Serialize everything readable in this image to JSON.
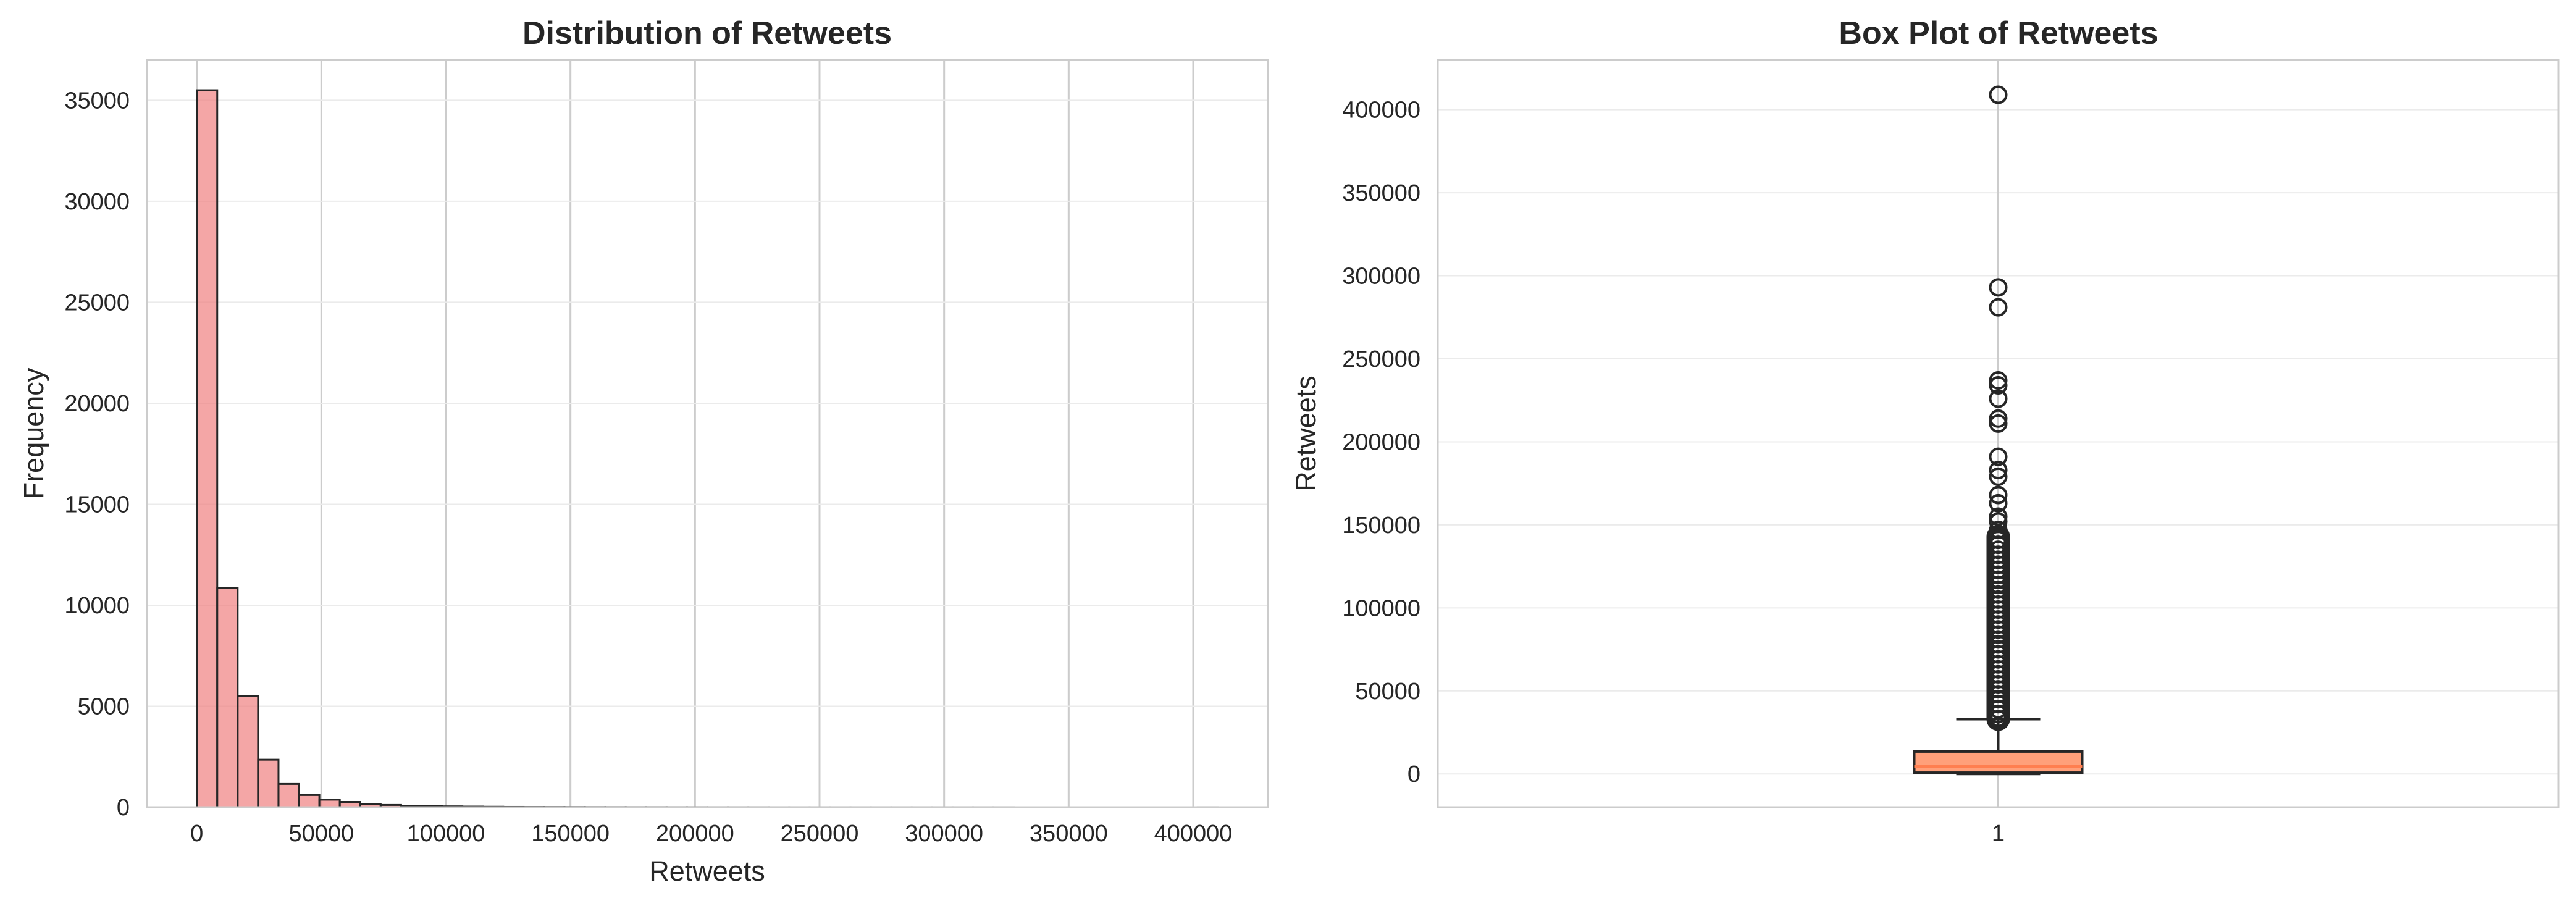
{
  "chart_data": [
    {
      "type": "bar",
      "title": "Distribution of Retweets",
      "xlabel": "Retweets",
      "ylabel": "Frequency",
      "xlim": [
        -20000,
        430000
      ],
      "ylim": [
        0,
        37000
      ],
      "x_ticks": [
        0,
        50000,
        100000,
        150000,
        200000,
        250000,
        300000,
        350000,
        400000
      ],
      "x_tick_labels": [
        "0",
        "50000",
        "100000",
        "150000",
        "200000",
        "250000",
        "300000",
        "350000",
        "400000"
      ],
      "y_ticks": [
        0,
        5000,
        10000,
        15000,
        20000,
        25000,
        30000,
        35000
      ],
      "y_tick_labels": [
        "0",
        "5000",
        "10000",
        "15000",
        "20000",
        "25000",
        "30000",
        "35000"
      ],
      "bin_start": 0,
      "bin_width": 8200,
      "values": [
        35500,
        10850,
        5500,
        2350,
        1150,
        600,
        370,
        260,
        160,
        110,
        75,
        55,
        40,
        30,
        22,
        16,
        12,
        10,
        8,
        6,
        5,
        4,
        4,
        3,
        3,
        2,
        2,
        2,
        1,
        1,
        1,
        1,
        1,
        1,
        1,
        1,
        1,
        1,
        1,
        1,
        0,
        0,
        0,
        0,
        0,
        0,
        0,
        0,
        0,
        1
      ],
      "bar_color": "#f08080",
      "grid": "vertical lines only"
    },
    {
      "type": "box",
      "title": "Box Plot of Retweets",
      "ylabel": "Retweets",
      "ylim": [
        -20000,
        430000
      ],
      "category_labels": [
        "1"
      ],
      "y_ticks": [
        0,
        50000,
        100000,
        150000,
        200000,
        250000,
        300000,
        350000,
        400000
      ],
      "y_tick_labels": [
        "0",
        "50000",
        "100000",
        "150000",
        "200000",
        "250000",
        "300000",
        "350000",
        "400000"
      ],
      "box": {
        "whisker_low": 0,
        "q1": 800,
        "median": 4500,
        "q3": 13500,
        "whisker_high": 33000
      },
      "outliers": [
        409000,
        293000,
        281000,
        237000,
        234000,
        226000,
        214000,
        211000,
        191000,
        183000,
        179000,
        168000,
        163000,
        155000,
        152000,
        147000
      ],
      "outlier_band": [
        33000,
        143000
      ],
      "box_color": "#ffa07a",
      "median_color": "#ff7f50",
      "grid": "horizontal lines only"
    }
  ]
}
